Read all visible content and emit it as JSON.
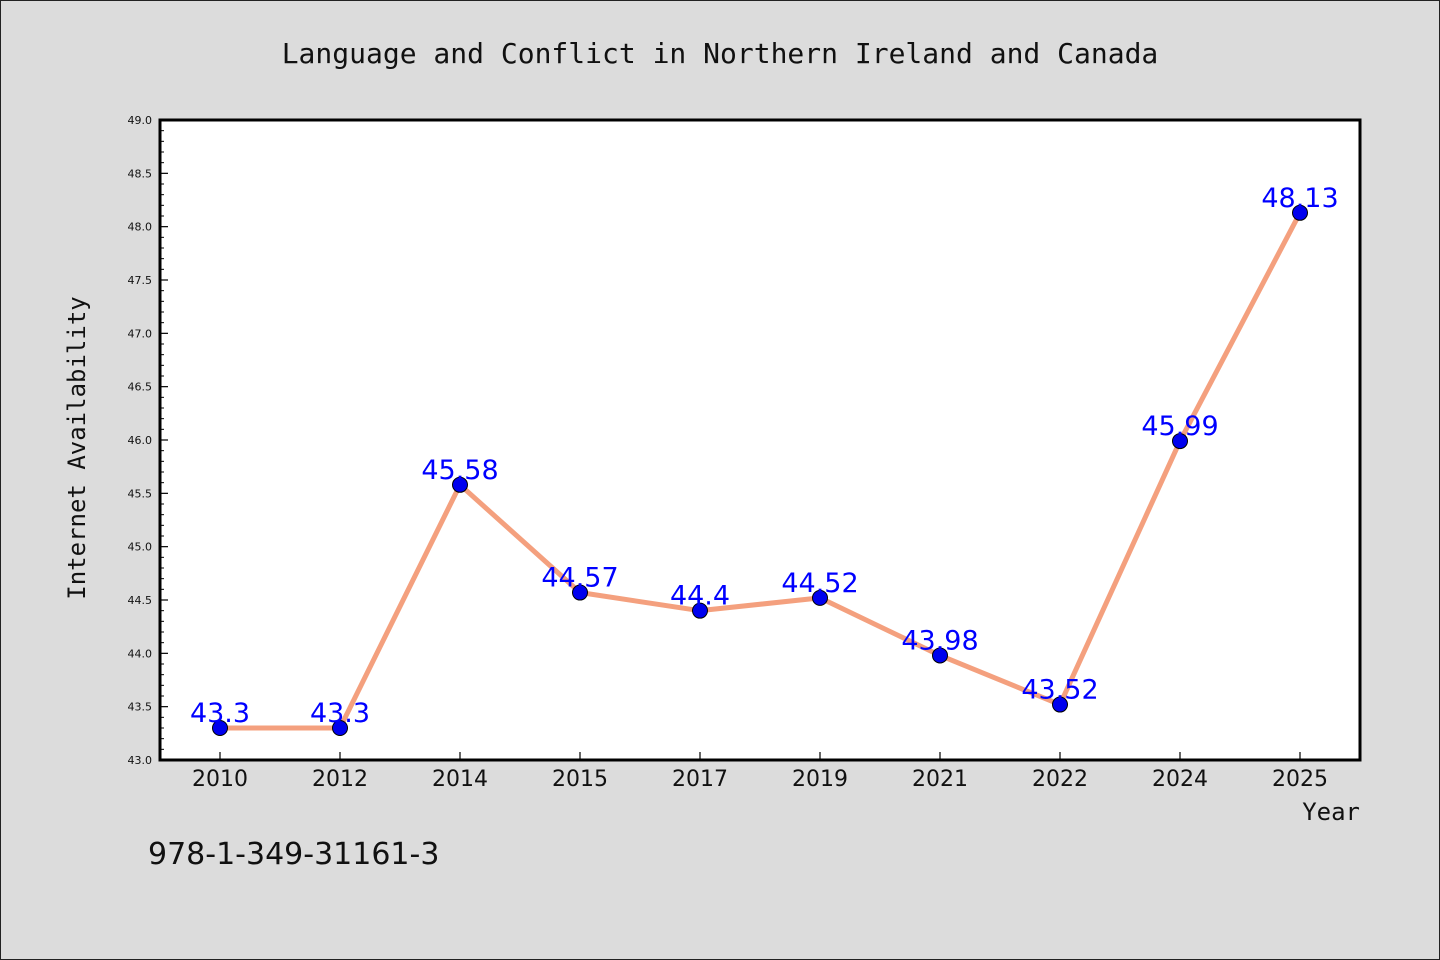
{
  "chart_data": {
    "type": "line",
    "title": "Language and Conflict in Northern Ireland and Canada",
    "xlabel": "Year",
    "ylabel": "Internet Availability",
    "categories": [
      "2010",
      "2012",
      "2014",
      "2015",
      "2017",
      "2019",
      "2021",
      "2022",
      "2024",
      "2025"
    ],
    "values": [
      43.3,
      43.3,
      45.58,
      44.57,
      44.4,
      44.52,
      43.98,
      43.52,
      45.99,
      48.13
    ],
    "data_labels": [
      "43.3",
      "43.3",
      "45.58",
      "44.57",
      "44.4",
      "44.52",
      "43.98",
      "43.52",
      "45.99",
      "48.13"
    ],
    "ylim": [
      43.0,
      49.0
    ],
    "y_ticks": [
      "43.0",
      "43.5",
      "44.0",
      "44.5",
      "45.0",
      "45.5",
      "46.0",
      "46.5",
      "47.0",
      "47.5",
      "48.0",
      "48.5",
      "49.0"
    ],
    "grid": false,
    "line_color": "#f4a07e",
    "marker_color": "#0000ee",
    "label_color": "#0000ff"
  },
  "footer_text": "978-1-349-31161-3"
}
